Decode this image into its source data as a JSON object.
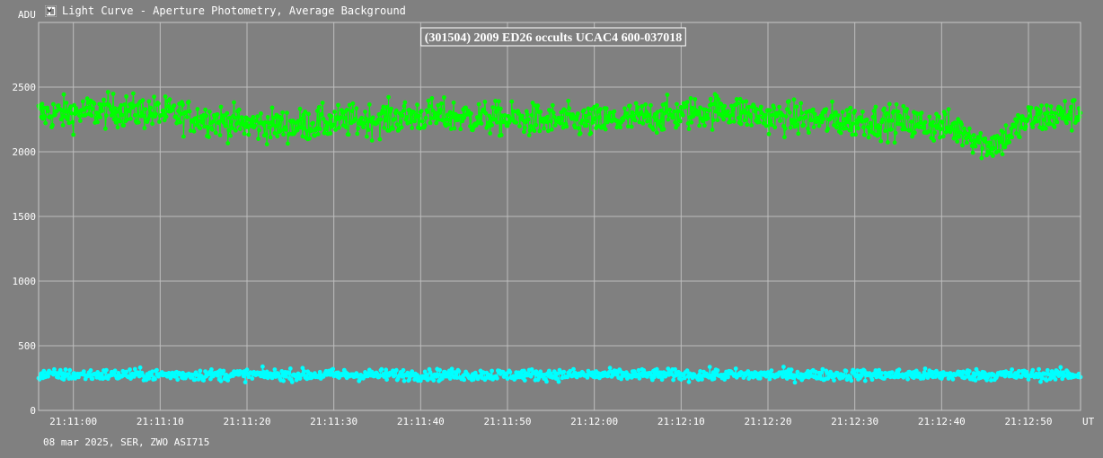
{
  "window": {
    "title": "Light Curve - Aperture Photometry, Average Background",
    "icon": "light-curve-icon"
  },
  "footer": {
    "info": "08 mar 2025, SER, ZWO ASI715"
  },
  "chart_data": {
    "type": "line",
    "title": "(301504) 2009 ED26 occults UCAC4 600-037018",
    "ylabel": "ADU",
    "xlabel": "",
    "x_unit": "UT",
    "ylim": [
      0,
      3000
    ],
    "xlim": [
      "21:10:56",
      "21:12:56"
    ],
    "y_ticks": [
      0,
      500,
      1000,
      1500,
      2000,
      2500
    ],
    "x_ticks": [
      "21:11:00",
      "21:11:10",
      "21:11:20",
      "21:11:30",
      "21:11:40",
      "21:11:50",
      "21:12:00",
      "21:12:10",
      "21:12:20",
      "21:12:30",
      "21:12:40",
      "21:12:50"
    ],
    "grid": true,
    "background_color": "#808080",
    "series": [
      {
        "color": "#00ff00",
        "time": [
          "21:10:56",
          "21:11:00",
          "21:11:05",
          "21:11:10",
          "21:11:15",
          "21:11:20",
          "21:11:25",
          "21:11:30",
          "21:11:35",
          "21:11:40",
          "21:11:45",
          "21:11:50",
          "21:11:55",
          "21:12:00",
          "21:12:05",
          "21:12:10",
          "21:12:15",
          "21:12:20",
          "21:12:25",
          "21:12:30",
          "21:12:35",
          "21:12:40",
          "21:12:43",
          "21:12:45",
          "21:12:47",
          "21:12:50",
          "21:12:56"
        ],
        "values": [
          2290,
          2300,
          2320,
          2300,
          2260,
          2210,
          2200,
          2230,
          2250,
          2280,
          2270,
          2250,
          2240,
          2230,
          2260,
          2290,
          2330,
          2270,
          2250,
          2240,
          2230,
          2200,
          2150,
          2050,
          2090,
          2250,
          2300
        ],
        "spread": 220
      },
      {
        "color": "#00ffff",
        "time": [
          "21:10:56",
          "21:12:56"
        ],
        "values": [
          275,
          275
        ],
        "spread": 75
      }
    ]
  }
}
